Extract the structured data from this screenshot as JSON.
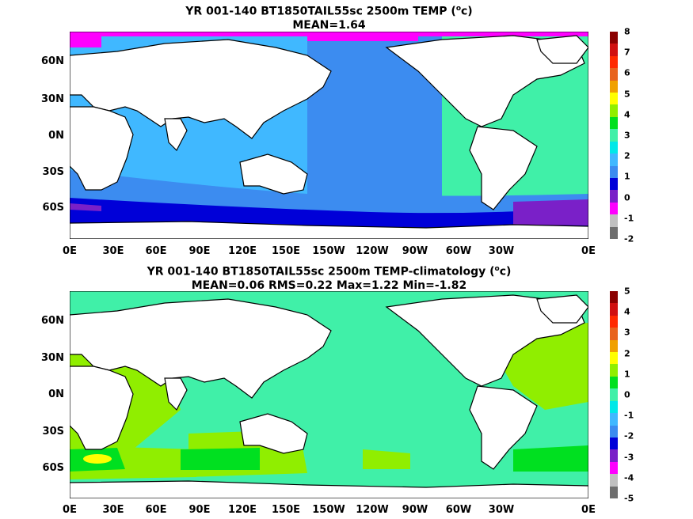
{
  "panels": [
    {
      "title_line1_pre": "YR 001-140 BT1850TAIL55sc 2500m TEMP (",
      "title_unit_sup": "o",
      "title_unit_post": "c)",
      "title_line2": "MEAN=1.64",
      "colorbar_labels": [
        "8",
        "7",
        "6",
        "5",
        "4",
        "3",
        "2",
        "1",
        "0",
        "-1",
        "-2"
      ],
      "colorbar_colors": [
        "#8b0000",
        "#d01010",
        "#ff2a00",
        "#e8641e",
        "#f0a000",
        "#ffff00",
        "#90ee00",
        "#00e020",
        "#40f0a8",
        "#00e8e8",
        "#40b8ff",
        "#3c8cf0",
        "#0000d8",
        "#7a20c8",
        "#ff00ff",
        "#c0c0c0",
        "#6e6e6e"
      ]
    },
    {
      "title_line1_pre": "YR 001-140 BT1850TAIL55sc 2500m TEMP-climatology (",
      "title_unit_sup": "o",
      "title_unit_post": "c)",
      "title_line2": "MEAN=0.06   RMS=0.22   Max=1.22   Min=-1.82",
      "colorbar_labels": [
        "5",
        "4",
        "3",
        "2",
        "1",
        "0",
        "-1",
        "-2",
        "-3",
        "-4",
        "-5"
      ],
      "colorbar_colors": [
        "#8b0000",
        "#d01010",
        "#ff2a00",
        "#e8641e",
        "#f0a000",
        "#ffff00",
        "#90ee00",
        "#00e020",
        "#40f0a8",
        "#00e8e8",
        "#40b8ff",
        "#3c8cf0",
        "#0000d8",
        "#7a20c8",
        "#ff00ff",
        "#c0c0c0",
        "#6e6e6e"
      ]
    }
  ],
  "lat_labels": [
    "60N",
    "30N",
    "0N",
    "30S",
    "60S"
  ],
  "lon_labels": [
    "0E",
    "30E",
    "60E",
    "90E",
    "120E",
    "150E",
    "150W",
    "120W",
    "90W",
    "60W",
    "30W",
    "0E"
  ]
}
